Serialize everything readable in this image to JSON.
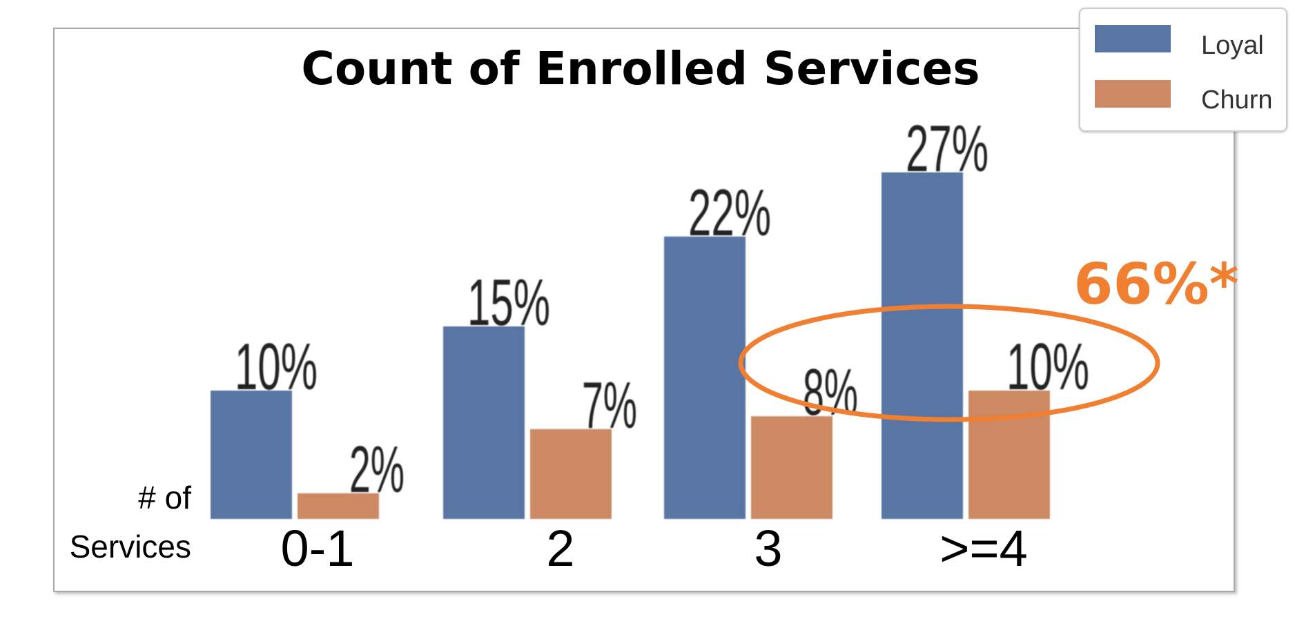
{
  "chart_data": {
    "type": "bar",
    "title": "Count of Enrolled  Services",
    "xlabel_lines": [
      "# of",
      "Services"
    ],
    "ylabel": "",
    "categories": [
      "0-1",
      "2",
      "3",
      ">=4"
    ],
    "series": [
      {
        "name": "Loyal",
        "color": "#5975a4",
        "values": [
          10,
          15,
          22,
          27
        ],
        "labels": [
          "10%",
          "15%",
          "22%",
          "27%"
        ]
      },
      {
        "name": "Churn",
        "color": "#cc8963",
        "values": [
          2,
          7,
          8,
          10
        ],
        "labels": [
          "2%",
          "7%",
          "8%",
          "10%"
        ]
      }
    ],
    "ylim": [
      0,
      30
    ],
    "grid": false,
    "legend_position": "top-right",
    "annotation": {
      "text": "66%*",
      "color": "#f07f31",
      "highlighted_categories": [
        "3",
        ">=4"
      ],
      "highlighted_series": "Churn"
    }
  },
  "colors": {
    "frame": "#999999",
    "text": "#000000",
    "data_label": "#222222"
  }
}
